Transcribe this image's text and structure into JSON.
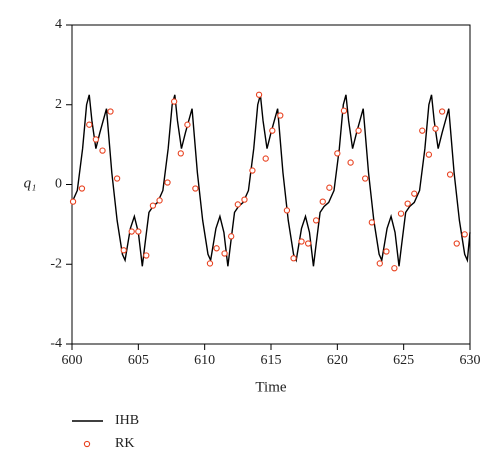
{
  "chart_data": {
    "type": "line",
    "x_label": "Time",
    "y_label": "q₁",
    "xlim": [
      600,
      630
    ],
    "xticks": [
      600,
      605,
      610,
      615,
      620,
      625,
      630
    ],
    "ylim": [
      -4,
      4
    ],
    "yticks": [
      -4,
      -2,
      0,
      2,
      4
    ],
    "series": [
      {
        "name": "IHB",
        "type": "line",
        "color": "#000000",
        "x": [
          600,
          600.4,
          600.8,
          601.1,
          601.3,
          601.5,
          601.8,
          602.1,
          602.6,
          603,
          603.4,
          603.8,
          604,
          604.4,
          604.7,
          605,
          605.3,
          605.5,
          605.8,
          606.1,
          606.45,
          606.85,
          607.25,
          607.55,
          607.75,
          607.95,
          608.25,
          608.55,
          609.05,
          609.45,
          609.85,
          610.25,
          610.45,
          610.85,
          611.15,
          611.45,
          611.75,
          611.95,
          612.25,
          612.55,
          612.9,
          613.3,
          613.7,
          614,
          614.2,
          614.4,
          614.7,
          615,
          615.5,
          615.9,
          616.3,
          616.7,
          616.9,
          617.3,
          617.6,
          617.9,
          618.2,
          618.4,
          618.7,
          619,
          619.35,
          619.75,
          620.15,
          620.45,
          620.65,
          620.85,
          621.15,
          621.45,
          621.95,
          622.35,
          622.75,
          623.15,
          623.35,
          623.75,
          624.05,
          624.35,
          624.65,
          624.85,
          625.15,
          625.45,
          625.8,
          626.2,
          626.6,
          626.9,
          627.1,
          627.3,
          627.6,
          627.9,
          628.4,
          628.8,
          629.2,
          629.6,
          629.8,
          630
        ],
        "values": [
          -0.45,
          -0.15,
          0.9,
          2.0,
          2.25,
          1.6,
          0.9,
          1.3,
          1.9,
          0.3,
          -0.9,
          -1.75,
          -1.9,
          -1.1,
          -0.8,
          -1.2,
          -2.05,
          -1.5,
          -0.7,
          -0.55,
          -0.45,
          -0.15,
          0.9,
          2.0,
          2.25,
          1.6,
          0.9,
          1.3,
          1.9,
          0.3,
          -0.9,
          -1.75,
          -1.9,
          -1.1,
          -0.8,
          -1.2,
          -2.05,
          -1.5,
          -0.7,
          -0.55,
          -0.45,
          -0.15,
          0.9,
          2.0,
          2.25,
          1.6,
          0.9,
          1.3,
          1.9,
          0.3,
          -0.9,
          -1.75,
          -1.9,
          -1.1,
          -0.8,
          -1.2,
          -2.05,
          -1.5,
          -0.7,
          -0.55,
          -0.45,
          -0.15,
          0.9,
          2.0,
          2.25,
          1.6,
          0.9,
          1.3,
          1.9,
          0.3,
          -0.9,
          -1.75,
          -1.9,
          -1.1,
          -0.8,
          -1.2,
          -2.05,
          -1.5,
          -0.7,
          -0.55,
          -0.45,
          -0.15,
          0.9,
          2.0,
          2.25,
          1.6,
          0.9,
          1.3,
          1.9,
          0.3,
          -0.9,
          -1.75,
          -1.9,
          -1.2
        ]
      },
      {
        "name": "RK",
        "type": "scatter",
        "color": "#e8411f",
        "x": [
          600.08,
          600.75,
          601.3,
          601.8,
          602.3,
          602.9,
          603.4,
          603.9,
          604.5,
          605,
          605.6,
          606.1,
          606.6,
          607.2,
          607.7,
          608.2,
          608.7,
          609.3,
          610.4,
          610.9,
          611.5,
          612,
          612.5,
          613,
          613.6,
          614.1,
          614.6,
          615.1,
          615.7,
          616.2,
          616.7,
          617.3,
          617.8,
          618.4,
          618.9,
          619.4,
          620,
          620.5,
          621,
          621.6,
          622.1,
          622.6,
          623.2,
          623.7,
          624.3,
          624.8,
          625.3,
          625.8,
          626.4,
          626.9,
          627.4,
          627.9,
          628.5,
          629,
          629.6
        ],
        "values": [
          -0.43,
          -0.1,
          1.5,
          1.13,
          0.85,
          1.83,
          0.15,
          -1.65,
          -1.18,
          -1.18,
          -1.78,
          -0.53,
          -0.4,
          0.05,
          2.08,
          0.78,
          1.5,
          -0.1,
          -1.98,
          -1.6,
          -1.73,
          -1.3,
          -0.5,
          -0.38,
          0.35,
          2.25,
          0.65,
          1.35,
          1.73,
          -0.65,
          -1.85,
          -1.43,
          -1.48,
          -0.9,
          -0.43,
          -0.08,
          0.78,
          1.85,
          0.55,
          1.35,
          0.15,
          -0.95,
          -1.98,
          -1.68,
          -2.1,
          -0.73,
          -0.48,
          -0.23,
          1.35,
          0.75,
          1.4,
          1.83,
          0.25,
          -1.48,
          -1.25
        ]
      }
    ]
  }
}
